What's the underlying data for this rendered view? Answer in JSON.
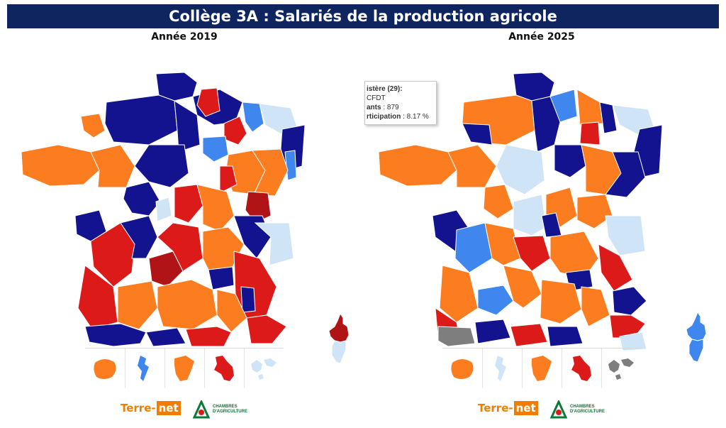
{
  "title": "Collège 3A : Salariés de la production agricole",
  "colors": {
    "dark_blue": "#13128f",
    "orange": "#fb7d1f",
    "red": "#dd1a1a",
    "dark_red": "#b11416",
    "light_blue": "#cfe4f6",
    "medium_blue": "#3f86ee",
    "grey": "#7e7e7e",
    "banner": "#0f2560"
  },
  "maps": [
    {
      "year_label": "Année 2019",
      "overseas": [
        "orange",
        "medium_blue",
        "orange",
        "red",
        "light_blue"
      ],
      "corsica": [
        "dark_red",
        "light_blue"
      ]
    },
    {
      "year_label": "Année 2025",
      "overseas": [
        "orange",
        "light_blue",
        "orange",
        "red",
        "grey"
      ],
      "corsica": [
        "medium_blue",
        "medium_blue"
      ]
    }
  ],
  "tooltip": {
    "line1": "istère (29):",
    "line2": "CFDT",
    "line3_label": "ants",
    "line3_value": " : 879",
    "line4_label": "rticipation",
    "line4_value": " : 8.17 %"
  },
  "logos": {
    "terre": "Terre-",
    "net": "net",
    "chambres_line1": "CHAMBRES",
    "chambres_line2": "D'AGRICULTURE"
  }
}
